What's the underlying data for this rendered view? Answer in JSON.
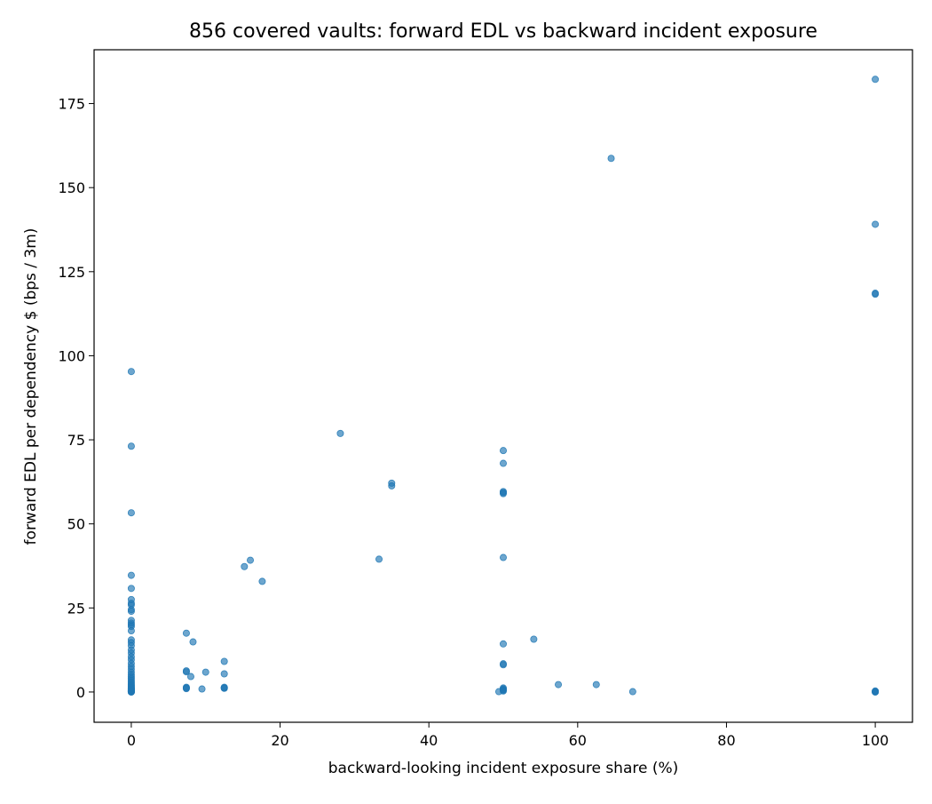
{
  "chart_data": {
    "type": "scatter",
    "title": "856 covered vaults: forward EDL vs backward incident exposure",
    "xlabel": "backward-looking incident exposure share (%)",
    "ylabel": "forward EDL per dependency $ (bps / 3m)",
    "xlim": [
      -5,
      105
    ],
    "ylim": [
      -9,
      191
    ],
    "xticks": [
      0,
      20,
      40,
      60,
      80,
      100
    ],
    "yticks": [
      0,
      25,
      50,
      75,
      100,
      125,
      150,
      175
    ],
    "grid": false,
    "marker_color": "#1f77b4",
    "marker_opacity": 0.65,
    "series": [
      {
        "x": [
          0,
          0,
          0,
          0,
          0,
          0,
          0,
          0,
          0,
          0,
          0,
          0,
          0,
          0,
          0,
          0,
          0,
          0,
          0,
          0,
          0,
          0,
          0,
          0,
          0,
          0,
          0,
          0,
          0,
          0,
          0,
          0,
          0,
          0,
          0,
          0,
          0,
          0,
          0,
          0,
          0,
          0,
          0,
          0,
          0,
          0,
          0,
          0,
          0,
          0,
          7.4,
          7.4,
          7.4,
          7.4,
          7.4,
          7.4,
          8.3,
          8.0,
          9.5,
          10.0,
          12.5,
          12.5,
          12.5,
          12.5,
          12.5,
          15.2,
          16.0,
          17.6,
          28.1,
          33.3,
          35.0,
          35.0,
          49.4,
          50,
          50,
          50,
          50,
          50,
          50,
          50,
          50,
          50,
          50,
          50,
          50,
          50,
          50,
          54.1,
          57.4,
          62.5,
          67.4,
          64.5,
          100,
          100,
          100,
          100,
          100,
          100,
          100,
          100
        ],
        "y": [
          95.3,
          73.1,
          53.3,
          34.7,
          30.8,
          27.5,
          26.4,
          25.9,
          24.5,
          24.0,
          21.3,
          20.5,
          20.0,
          19.5,
          18.2,
          15.5,
          14.7,
          13.8,
          12.5,
          11.6,
          10.5,
          9.6,
          8.5,
          7.6,
          6.8,
          5.9,
          5.2,
          4.6,
          4.0,
          3.5,
          3.0,
          2.6,
          2.2,
          1.9,
          1.6,
          1.3,
          1.0,
          0.8,
          0.6,
          0.4,
          0.3,
          0.2,
          0.1,
          0.0,
          0.0,
          0.0,
          0.5,
          0.7,
          1.1,
          0.3,
          17.5,
          6.3,
          6.0,
          1.4,
          1.2,
          1.0,
          14.9,
          4.6,
          0.9,
          5.9,
          9.1,
          5.4,
          1.4,
          1.2,
          1.1,
          37.3,
          39.2,
          32.9,
          76.9,
          39.5,
          62.1,
          61.3,
          0.1,
          71.8,
          68.0,
          59.6,
          59.3,
          59.0,
          40.0,
          14.3,
          8.4,
          8.1,
          1.2,
          0.9,
          0.7,
          0.5,
          0.3,
          15.7,
          2.2,
          2.2,
          0.1,
          158.7,
          182.2,
          139.1,
          118.6,
          118.3,
          0.3,
          0.1,
          0.0,
          0.0
        ]
      }
    ]
  }
}
